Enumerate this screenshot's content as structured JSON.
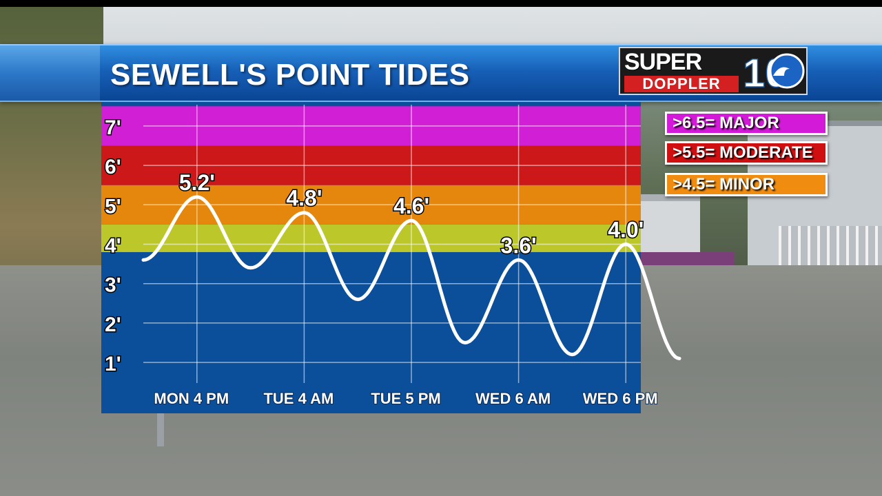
{
  "title": "SEWELL'S POINT TIDES",
  "logo": {
    "line1": "SUPER",
    "line2": "DOPPLER",
    "number": "10"
  },
  "legend": [
    {
      "label": ">6.5= MAJOR",
      "color": "#d21ad8"
    },
    {
      "label": ">5.5= MODERATE",
      "color": "#d01010"
    },
    {
      "label": ">4.5= MINOR",
      "color": "#f08c10"
    }
  ],
  "chart_data": {
    "type": "line",
    "title": "SEWELL'S POINT TIDES",
    "x_tick_labels": [
      "MON 4 PM",
      "TUE 4 AM",
      "TUE 5 PM",
      "WED 6 AM",
      "WED 6 PM"
    ],
    "y_tick_labels": [
      "1'",
      "2'",
      "3'",
      "4'",
      "5'",
      "6'",
      "7'"
    ],
    "ylim": [
      0.8,
      7.5
    ],
    "grid": true,
    "bands": [
      {
        "from": 0.8,
        "to": 3.8,
        "color": "#0b4e9a"
      },
      {
        "from": 3.8,
        "to": 4.5,
        "color": "#bcc82a"
      },
      {
        "from": 4.5,
        "to": 5.5,
        "color": "#e5860d"
      },
      {
        "from": 5.5,
        "to": 6.5,
        "color": "#cc1818"
      },
      {
        "from": 6.5,
        "to": 7.5,
        "color": "#d11fd6"
      }
    ],
    "series": [
      {
        "points": [
          {
            "x": 0.0,
            "y": 3.6
          },
          {
            "x": 0.5,
            "y": 5.2,
            "label": "5.2'"
          },
          {
            "x": 1.0,
            "y": 3.4
          },
          {
            "x": 1.5,
            "y": 4.8,
            "label": "4.8'"
          },
          {
            "x": 2.0,
            "y": 2.6
          },
          {
            "x": 2.5,
            "y": 4.6,
            "label": "4.6'"
          },
          {
            "x": 3.0,
            "y": 1.5
          },
          {
            "x": 3.5,
            "y": 3.6,
            "label": "3.6'"
          },
          {
            "x": 4.0,
            "y": 1.2
          },
          {
            "x": 4.5,
            "y": 4.0,
            "label": "4.0'"
          },
          {
            "x": 5.0,
            "y": 1.1
          }
        ]
      }
    ]
  }
}
